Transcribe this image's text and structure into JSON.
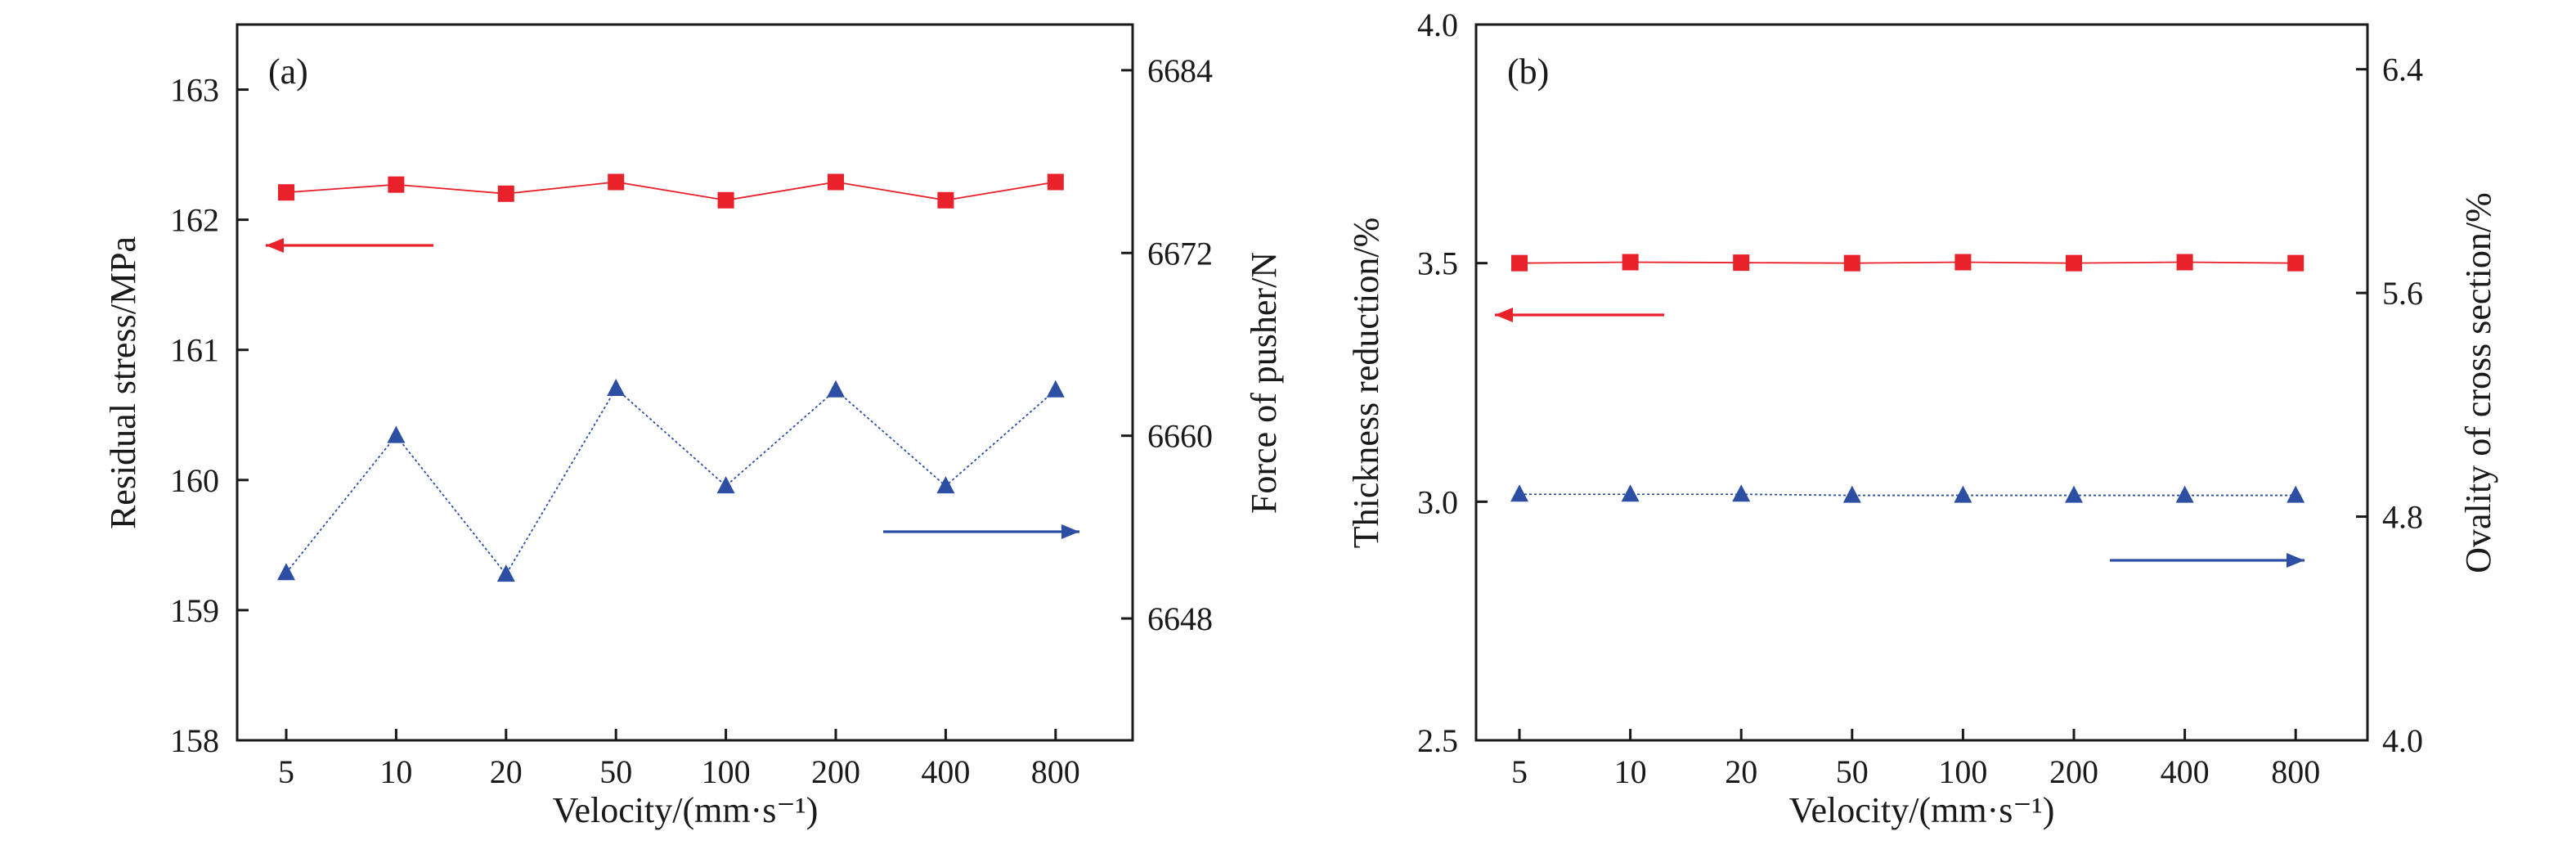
{
  "chart_data": [
    {
      "type": "line",
      "panel_label": "(a)",
      "categories": [
        "5",
        "10",
        "20",
        "50",
        "100",
        "200",
        "400",
        "800"
      ],
      "xlabel": "Velocity/(mm·s⁻¹)",
      "ylabel": "Residual stress/MPa",
      "ylabel_right": "Force of pusher/N",
      "ylim": [
        158,
        163.5
      ],
      "yticks": [
        158,
        159,
        160,
        161,
        162,
        163
      ],
      "ylim_right": [
        6640,
        6687
      ],
      "yticks_right": [
        6648,
        6660,
        6672,
        6684
      ],
      "grid": false,
      "series": [
        {
          "axis": "left",
          "marker": "square",
          "color": "#e8212a",
          "values": [
            162.21,
            162.27,
            162.2,
            162.29,
            162.15,
            162.29,
            162.15,
            162.29
          ]
        },
        {
          "axis": "right",
          "marker": "triangle",
          "color": "#2d4fa3",
          "values": [
            6651.0,
            6660.0,
            6650.9,
            6663.1,
            6656.7,
            6663.0,
            6656.7,
            6663.0
          ]
        }
      ],
      "arrows": [
        {
          "series_axis": "left",
          "direction": "left",
          "color": "#e8212a"
        },
        {
          "series_axis": "right",
          "direction": "right",
          "color": "#2d4fa3"
        }
      ]
    },
    {
      "type": "line",
      "panel_label": "(b)",
      "categories": [
        "5",
        "10",
        "20",
        "50",
        "100",
        "200",
        "400",
        "800"
      ],
      "xlabel": "Velocity/(mm·s⁻¹)",
      "ylabel": "Thickness reduction/%",
      "ylabel_right": "Ovality of cross section/%",
      "ylim": [
        2.5,
        4.0
      ],
      "yticks": [
        2.5,
        3.0,
        3.5,
        4.0
      ],
      "ylim_right": [
        4.0,
        6.56
      ],
      "yticks_right": [
        4.0,
        4.8,
        5.6,
        6.4
      ],
      "grid": false,
      "series": [
        {
          "axis": "left",
          "marker": "square",
          "color": "#e8212a",
          "values": [
            3.5,
            3.502,
            3.501,
            3.5,
            3.502,
            3.5,
            3.502,
            3.5
          ]
        },
        {
          "axis": "right",
          "marker": "triangle",
          "color": "#2d4fa3",
          "values": [
            4.88,
            4.88,
            4.88,
            4.876,
            4.876,
            4.876,
            4.876,
            4.876
          ]
        }
      ],
      "arrows": [
        {
          "series_axis": "left",
          "direction": "left",
          "color": "#e8212a"
        },
        {
          "series_axis": "right",
          "direction": "right",
          "color": "#2d4fa3"
        }
      ]
    }
  ]
}
